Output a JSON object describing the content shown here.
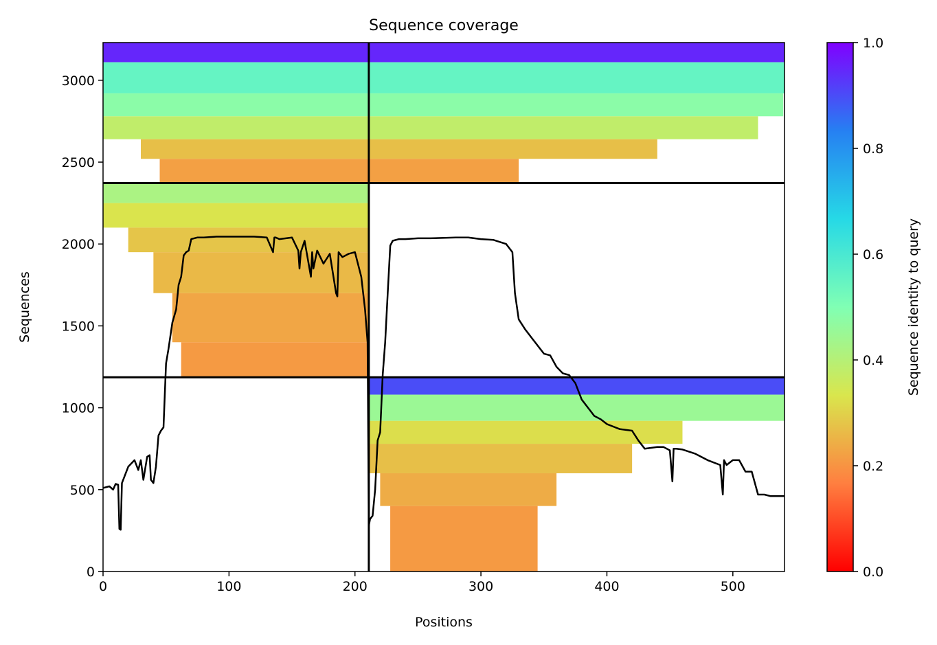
{
  "chart_data": {
    "type": "heatmap",
    "title": "Sequence coverage",
    "xlabel": "Positions",
    "ylabel": "Sequences",
    "xlim": [
      0,
      541
    ],
    "ylim": [
      0,
      3230
    ],
    "xticks": [
      0,
      100,
      200,
      300,
      400,
      500
    ],
    "yticks": [
      0,
      500,
      1000,
      1500,
      2000,
      2500,
      3000
    ],
    "grid": false,
    "colormap": "rainbow",
    "colorbar": {
      "label": "Sequence identity to query",
      "range": [
        0,
        1
      ],
      "ticks": [
        "0.0",
        "0.2",
        "0.4",
        "0.6",
        "0.8",
        "1.0"
      ],
      "stops": [
        "#ff0000",
        "#ff7f40",
        "#d9e64d",
        "#80ffb4",
        "#26d9e6",
        "#2680f2",
        "#8000ff"
      ]
    },
    "domain_boundaries": {
      "x": 211,
      "y": [
        1186,
        2372
      ]
    },
    "blocks": [
      {
        "name": "top block",
        "x_range": [
          0,
          541
        ],
        "y_range": [
          2372,
          3230
        ],
        "spans": [
          {
            "x": [
              0,
              211
            ],
            "y": [
              3110,
              3230
            ],
            "identity": 0.95
          },
          {
            "x": [
              211,
              541
            ],
            "y": [
              3110,
              3230
            ],
            "identity": 0.95
          },
          {
            "x": [
              0,
              211
            ],
            "y": [
              2920,
              3110
            ],
            "identity": 0.55
          },
          {
            "x": [
              211,
              541
            ],
            "y": [
              2920,
              3110
            ],
            "identity": 0.55
          },
          {
            "x": [
              0,
              211
            ],
            "y": [
              2780,
              2920
            ],
            "identity": 0.48
          },
          {
            "x": [
              211,
              540
            ],
            "y": [
              2780,
              2920
            ],
            "identity": 0.48
          },
          {
            "x": [
              0,
              211
            ],
            "y": [
              2640,
              2780
            ],
            "identity": 0.38
          },
          {
            "x": [
              211,
              520
            ],
            "y": [
              2640,
              2780
            ],
            "identity": 0.38
          },
          {
            "x": [
              30,
              211
            ],
            "y": [
              2520,
              2640
            ],
            "identity": 0.27
          },
          {
            "x": [
              211,
              440
            ],
            "y": [
              2520,
              2640
            ],
            "identity": 0.27
          },
          {
            "x": [
              45,
              211
            ],
            "y": [
              2372,
              2520
            ],
            "identity": 0.22
          },
          {
            "x": [
              211,
              330
            ],
            "y": [
              2372,
              2520
            ],
            "identity": 0.22
          }
        ]
      },
      {
        "name": "middle block",
        "x_range": [
          0,
          211
        ],
        "y_range": [
          1186,
          2372
        ],
        "spans": [
          {
            "x": [
              0,
              211
            ],
            "y": [
              2250,
              2372
            ],
            "identity": 0.42
          },
          {
            "x": [
              0,
              211
            ],
            "y": [
              2100,
              2250
            ],
            "identity": 0.33
          },
          {
            "x": [
              20,
              211
            ],
            "y": [
              1950,
              2100
            ],
            "identity": 0.28
          },
          {
            "x": [
              40,
              211
            ],
            "y": [
              1700,
              1950
            ],
            "identity": 0.26
          },
          {
            "x": [
              55,
              211
            ],
            "y": [
              1400,
              1700
            ],
            "identity": 0.23
          },
          {
            "x": [
              62,
              211
            ],
            "y": [
              1186,
              1400
            ],
            "identity": 0.21
          }
        ]
      },
      {
        "name": "bottom block",
        "x_range": [
          211,
          541
        ],
        "y_range": [
          0,
          1186
        ],
        "spans": [
          {
            "x": [
              211,
              541
            ],
            "y": [
              1080,
              1186
            ],
            "identity": 0.9
          },
          {
            "x": [
              211,
              541
            ],
            "y": [
              920,
              1080
            ],
            "identity": 0.45
          },
          {
            "x": [
              211,
              460
            ],
            "y": [
              780,
              920
            ],
            "identity": 0.32
          },
          {
            "x": [
              211,
              420
            ],
            "y": [
              600,
              780
            ],
            "identity": 0.27
          },
          {
            "x": [
              220,
              360
            ],
            "y": [
              400,
              600
            ],
            "identity": 0.24
          },
          {
            "x": [
              228,
              345
            ],
            "y": [
              0,
              400
            ],
            "identity": 0.21
          }
        ]
      }
    ],
    "series": [
      {
        "type": "line",
        "color": "#000000",
        "x": [
          0,
          5,
          8,
          10,
          12,
          13,
          14,
          15,
          20,
          25,
          28,
          30,
          32,
          35,
          37,
          38,
          40,
          42,
          44,
          46,
          48,
          50,
          52,
          55,
          58,
          60,
          62,
          64,
          66,
          68,
          70,
          75,
          80,
          90,
          100,
          110,
          120,
          130,
          135,
          136,
          137,
          140,
          150,
          155,
          156,
          157,
          160,
          165,
          166,
          167,
          170,
          175,
          180,
          185,
          186,
          187,
          190,
          195,
          200,
          205,
          208,
          210,
          211,
          212,
          214,
          216,
          218,
          220,
          222,
          224,
          226,
          228,
          230,
          235,
          240,
          250,
          260,
          280,
          290,
          300,
          310,
          320,
          325,
          327,
          330,
          335,
          340,
          345,
          350,
          355,
          360,
          365,
          370,
          375,
          380,
          385,
          390,
          395,
          400,
          410,
          420,
          425,
          430,
          440,
          445,
          450,
          452,
          453,
          455,
          460,
          470,
          480,
          490,
          492,
          493,
          495,
          500,
          505,
          510,
          515,
          520,
          525,
          530,
          541
        ],
        "y": [
          510,
          520,
          500,
          535,
          530,
          260,
          255,
          540,
          640,
          680,
          620,
          680,
          560,
          700,
          710,
          560,
          540,
          640,
          830,
          860,
          880,
          1270,
          1360,
          1520,
          1600,
          1750,
          1800,
          1930,
          1950,
          1960,
          2030,
          2040,
          2040,
          2045,
          2045,
          2045,
          2045,
          2040,
          1950,
          2040,
          2040,
          2030,
          2040,
          1960,
          1850,
          1950,
          2020,
          1800,
          1950,
          1850,
          1960,
          1880,
          1940,
          1700,
          1680,
          1950,
          1920,
          1940,
          1950,
          1800,
          1600,
          1400,
          280,
          320,
          340,
          500,
          800,
          850,
          1200,
          1400,
          1700,
          1990,
          2020,
          2030,
          2030,
          2035,
          2035,
          2040,
          2040,
          2030,
          2025,
          2000,
          1950,
          1700,
          1540,
          1480,
          1430,
          1380,
          1330,
          1320,
          1250,
          1210,
          1200,
          1150,
          1050,
          1000,
          950,
          930,
          900,
          870,
          860,
          800,
          750,
          760,
          760,
          740,
          550,
          750,
          750,
          745,
          720,
          680,
          650,
          470,
          680,
          650,
          680,
          680,
          610,
          610,
          470,
          470,
          460,
          460
        ]
      }
    ]
  }
}
